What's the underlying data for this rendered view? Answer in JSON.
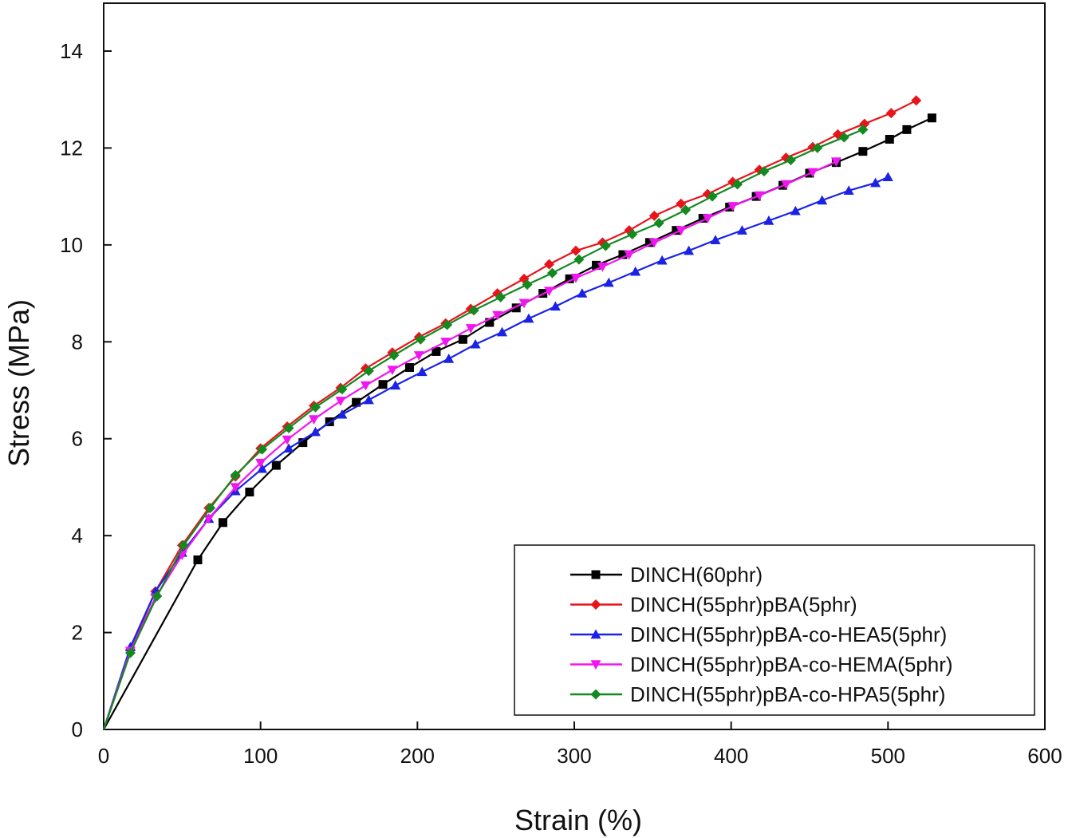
{
  "chart_data": {
    "type": "line",
    "xlabel": "Strain (%)",
    "ylabel": "Stress (MPa)",
    "xlim": [
      0,
      600
    ],
    "ylim": [
      0,
      15
    ],
    "xticks": [
      0,
      100,
      200,
      300,
      400,
      500,
      600
    ],
    "yticks": [
      0,
      2,
      4,
      6,
      8,
      10,
      12,
      14
    ],
    "grid": false,
    "legend_position": "bottom-right",
    "series": [
      {
        "name": "DINCH(60phr)",
        "color": "#000000",
        "marker": "square",
        "x": [
          0,
          60,
          76,
          93,
          110,
          127,
          144,
          161,
          178,
          195,
          212,
          229,
          246,
          263,
          280,
          297,
          314,
          331,
          348,
          365,
          382,
          399,
          416,
          433,
          450,
          467,
          484,
          501,
          512,
          528
        ],
        "y": [
          0,
          3.5,
          4.27,
          4.9,
          5.45,
          5.92,
          6.35,
          6.75,
          7.12,
          7.47,
          7.8,
          8.05,
          8.4,
          8.7,
          9.0,
          9.3,
          9.58,
          9.8,
          10.05,
          10.3,
          10.55,
          10.78,
          11.0,
          11.23,
          11.48,
          11.7,
          11.93,
          12.18,
          12.38,
          12.62
        ]
      },
      {
        "name": "DINCH(55phr)pBA(5phr)",
        "color": "#e8141c",
        "marker": "diamond",
        "x": [
          0,
          17,
          33,
          50,
          67,
          84,
          100,
          117,
          134,
          151,
          167,
          184,
          201,
          218,
          234,
          251,
          268,
          284,
          301,
          318,
          335,
          351,
          368,
          385,
          401,
          418,
          435,
          452,
          468,
          485,
          502,
          518
        ],
        "y": [
          0,
          1.65,
          2.85,
          3.8,
          4.57,
          5.22,
          5.8,
          6.25,
          6.68,
          7.05,
          7.45,
          7.78,
          8.1,
          8.38,
          8.68,
          9.0,
          9.3,
          9.6,
          9.88,
          10.05,
          10.3,
          10.6,
          10.85,
          11.05,
          11.3,
          11.55,
          11.8,
          12.02,
          12.28,
          12.5,
          12.72,
          12.98
        ]
      },
      {
        "name": "DINCH(55phr)pBA-co-HEA5(5phr)",
        "color": "#1a22e6",
        "marker": "triangle-up",
        "x": [
          0,
          17,
          33,
          50,
          67,
          84,
          101,
          118,
          135,
          152,
          169,
          186,
          203,
          220,
          237,
          254,
          271,
          288,
          305,
          322,
          339,
          356,
          373,
          390,
          407,
          424,
          441,
          458,
          475,
          492,
          500
        ],
        "y": [
          0,
          1.7,
          2.85,
          3.65,
          4.35,
          4.92,
          5.38,
          5.8,
          6.14,
          6.5,
          6.8,
          7.1,
          7.38,
          7.65,
          7.95,
          8.2,
          8.48,
          8.73,
          9.0,
          9.22,
          9.45,
          9.68,
          9.88,
          10.1,
          10.3,
          10.5,
          10.7,
          10.92,
          11.12,
          11.28,
          11.4
        ]
      },
      {
        "name": "DINCH(55phr)pBA-co-HEMA(5phr)",
        "color": "#f016f0",
        "marker": "triangle-down",
        "x": [
          0,
          17,
          33,
          50,
          67,
          84,
          100,
          117,
          134,
          151,
          167,
          184,
          201,
          218,
          234,
          251,
          268,
          284,
          301,
          318,
          335,
          351,
          368,
          385,
          401,
          418,
          435,
          452,
          467
        ],
        "y": [
          0,
          1.62,
          2.72,
          3.6,
          4.35,
          5.0,
          5.5,
          5.98,
          6.4,
          6.78,
          7.1,
          7.42,
          7.72,
          8.0,
          8.28,
          8.55,
          8.8,
          9.05,
          9.32,
          9.55,
          9.8,
          10.05,
          10.3,
          10.55,
          10.8,
          11.02,
          11.25,
          11.5,
          11.72
        ]
      },
      {
        "name": "DINCH(55phr)pBA-co-HPA5(5phr)",
        "color": "#13891f",
        "marker": "diamond",
        "x": [
          0,
          17,
          34,
          51,
          68,
          84,
          101,
          118,
          135,
          152,
          169,
          185,
          202,
          219,
          236,
          253,
          270,
          286,
          303,
          320,
          337,
          354,
          371,
          388,
          404,
          421,
          438,
          455,
          472,
          484
        ],
        "y": [
          0,
          1.58,
          2.75,
          3.8,
          4.57,
          5.25,
          5.78,
          6.22,
          6.65,
          7.02,
          7.4,
          7.72,
          8.05,
          8.35,
          8.65,
          8.92,
          9.18,
          9.42,
          9.7,
          9.98,
          10.22,
          10.45,
          10.72,
          11.0,
          11.25,
          11.52,
          11.75,
          12.0,
          12.22,
          12.38
        ]
      }
    ]
  }
}
